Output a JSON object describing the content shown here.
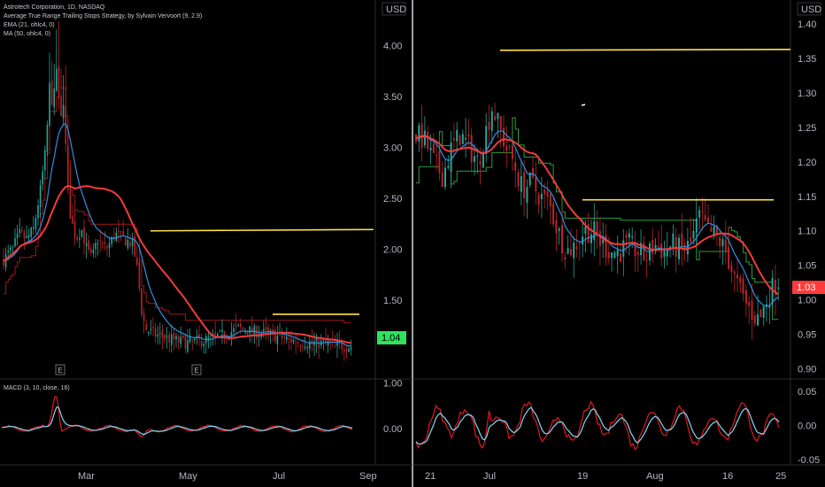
{
  "colors": {
    "background": "#000000",
    "up": "#26a69a",
    "down": "#b8252a",
    "ema": "#2f8fe0",
    "ma": "#f23b3b",
    "stop_up": "#2e9c3a",
    "stop_down": "#9e1717",
    "hline": "#ffe24a",
    "macd": "#e0191f",
    "signal": "#86d6f5",
    "price_tag_left": "#2ee25b",
    "price_tag_right": "#ff3b3b",
    "axis_text": "#b2b5be",
    "divider": "#2b2b2b"
  },
  "legend": {
    "line1": "Astrotech Corporation, 1D, NASDAQ",
    "line2": "Average True Range Trailing Stops Strategy, by Sylvain Vervoort (9, 2.9)",
    "line3": "EMA (21, ohlc4, 0)",
    "line4": "MA (50, ohlc4, 0)",
    "macd": "MACD (3, 10, close, 16)"
  },
  "chart_data": [
    {
      "type": "candlestick",
      "panel": "left-price",
      "symbol": "Astrotech Corporation",
      "timeframe": "1D",
      "exchange": "NASDAQ",
      "currency": "USD",
      "x_tick_labels": [
        "Mar",
        "May",
        "Jul",
        "Sep"
      ],
      "y_ticks": [
        1.5,
        2.0,
        2.5,
        3.0,
        3.5,
        4.0
      ],
      "ylim": [
        0.75,
        4.45
      ],
      "last_price": "1.04",
      "event_markers": [
        "E",
        "E"
      ],
      "hlines": [
        2.18,
        1.36
      ],
      "indicators": [
        "Average True Range Trailing Stops (9, 2.9)",
        "EMA (21, ohlc4, 0)",
        "MA (50, ohlc4, 0)"
      ]
    },
    {
      "type": "line",
      "panel": "left-macd",
      "title": "MACD (3, 10, close, 16)",
      "y_ticks": [
        0.0,
        1.0
      ],
      "ylim": [
        -0.8,
        1.05
      ],
      "series": [
        {
          "name": "MACD"
        },
        {
          "name": "Signal"
        }
      ]
    },
    {
      "type": "candlestick",
      "panel": "right-price",
      "currency": "USD",
      "x_tick_labels": [
        "21",
        "Jul",
        "19",
        "Aug",
        "16",
        "25"
      ],
      "y_ticks": [
        0.9,
        0.95,
        1.0,
        1.05,
        1.1,
        1.15,
        1.2,
        1.25,
        1.3,
        1.35,
        1.4
      ],
      "ylim": [
        0.885,
        1.435
      ],
      "last_price": "1.03",
      "hlines": [
        1.362,
        1.145
      ]
    },
    {
      "type": "line",
      "panel": "right-macd",
      "y_ticks": [
        -0.05,
        0.0,
        0.05
      ],
      "ylim": [
        -0.058,
        0.068
      ],
      "series": [
        {
          "name": "MACD"
        },
        {
          "name": "Signal"
        }
      ]
    }
  ]
}
